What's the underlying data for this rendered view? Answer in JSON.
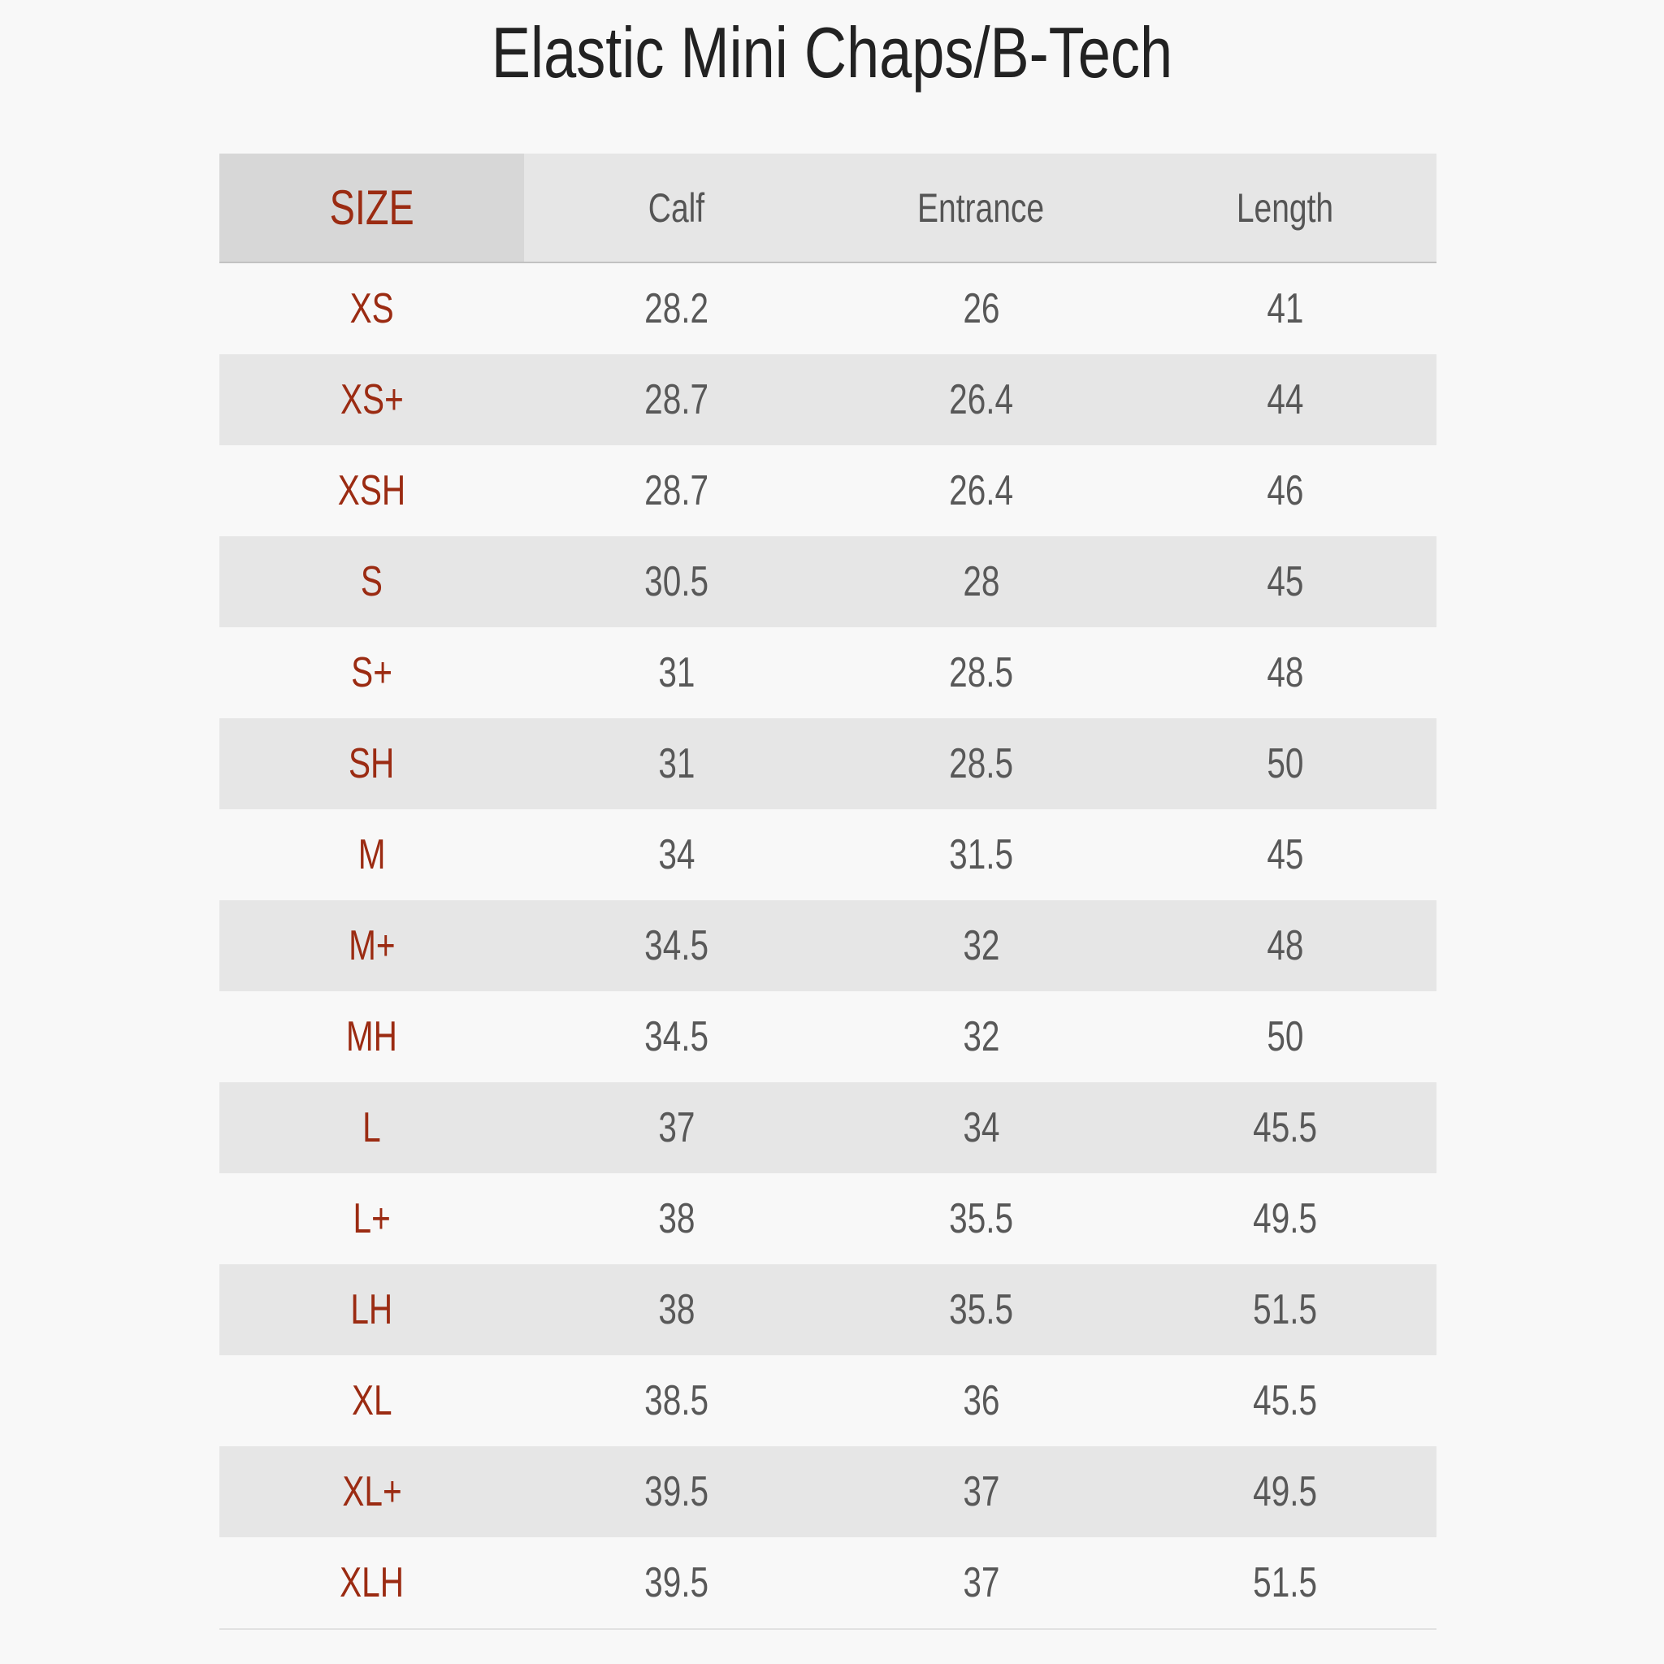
{
  "title": "Elastic Mini Chaps/B-Tech",
  "table": {
    "headers": [
      "SIZE",
      "Calf",
      "Entrance",
      "Length"
    ],
    "rows": [
      {
        "size": "XS",
        "calf": "28.2",
        "entrance": "26",
        "length": "41"
      },
      {
        "size": "XS+",
        "calf": "28.7",
        "entrance": "26.4",
        "length": "44"
      },
      {
        "size": "XSH",
        "calf": "28.7",
        "entrance": "26.4",
        "length": "46"
      },
      {
        "size": "S",
        "calf": "30.5",
        "entrance": "28",
        "length": "45"
      },
      {
        "size": "S+",
        "calf": "31",
        "entrance": "28.5",
        "length": "48"
      },
      {
        "size": "SH",
        "calf": "31",
        "entrance": "28.5",
        "length": "50"
      },
      {
        "size": "M",
        "calf": "34",
        "entrance": "31.5",
        "length": "45"
      },
      {
        "size": "M+",
        "calf": "34.5",
        "entrance": "32",
        "length": "48"
      },
      {
        "size": "MH",
        "calf": "34.5",
        "entrance": "32",
        "length": "50"
      },
      {
        "size": "L",
        "calf": "37",
        "entrance": "34",
        "length": "45.5"
      },
      {
        "size": "L+",
        "calf": "38",
        "entrance": "35.5",
        "length": "49.5"
      },
      {
        "size": "LH",
        "calf": "38",
        "entrance": "35.5",
        "length": "51.5"
      },
      {
        "size": "XL",
        "calf": "38.5",
        "entrance": "36",
        "length": "45.5"
      },
      {
        "size": "XL+",
        "calf": "39.5",
        "entrance": "37",
        "length": "49.5"
      },
      {
        "size": "XLH",
        "calf": "39.5",
        "entrance": "37",
        "length": "51.5"
      }
    ]
  },
  "colors": {
    "background": "#f8f8f8",
    "stripe": "#e6e6e6",
    "size_header_bg": "#d7d7d7",
    "size_text": "#9b2b12",
    "value_text": "#585858",
    "title_text": "#222222"
  }
}
